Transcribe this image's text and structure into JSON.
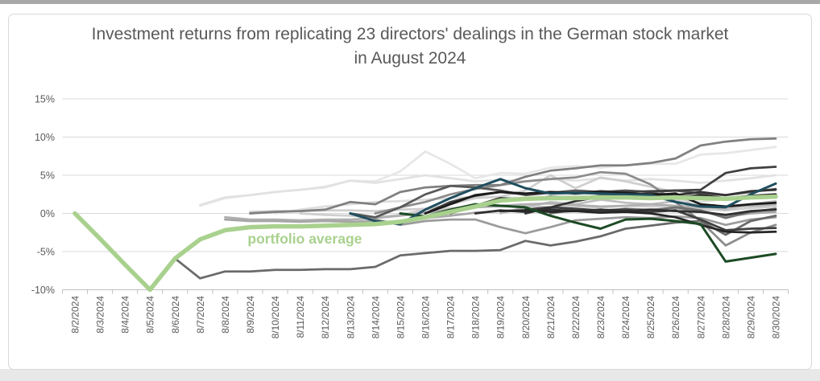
{
  "page": {
    "top_strip_color": "#a8a8a8",
    "bottom_strip_color": "#e8e8e8",
    "card_border_color": "#d9d9d9",
    "background_color": "#ffffff"
  },
  "chart_data": {
    "type": "line",
    "title": "Investment returns from replicating 23 directors' dealings in the German stock market in August 2024",
    "title_color": "#595959",
    "x_labels": [
      "8/2/2024",
      "8/3/2024",
      "8/4/2024",
      "8/5/2024",
      "8/6/2024",
      "8/7/2024",
      "8/8/2024",
      "8/9/2024",
      "8/10/2024",
      "8/11/2024",
      "8/12/2024",
      "8/13/2024",
      "8/14/2024",
      "8/15/2024",
      "8/16/2024",
      "8/17/2024",
      "8/18/2024",
      "8/19/2024",
      "8/20/2024",
      "8/21/2024",
      "8/22/2024",
      "8/23/2024",
      "8/24/2024",
      "8/25/2024",
      "8/26/2024",
      "8/27/2024",
      "8/28/2024",
      "8/29/2024",
      "8/30/2024"
    ],
    "ylim": [
      -10,
      15
    ],
    "yticks": [
      15,
      10,
      5,
      0,
      -5,
      -10
    ],
    "ytick_labels": [
      "15%",
      "10%",
      "5%",
      "0%",
      "-5%",
      "-10%"
    ],
    "grid": true,
    "legend_position": "none",
    "grid_color": "#d9d9d9",
    "axis_color": "#bfbfbf",
    "tick_label_color": "#595959",
    "annotation": {
      "text": "portfolio average",
      "color": "#a9d18e",
      "x_index": 6.9,
      "value": -2.6
    },
    "series": [
      {
        "id": "director-1",
        "color": "#e7e7e7",
        "width": 2.75,
        "values": [
          null,
          null,
          null,
          null,
          null,
          1.0,
          2.0,
          2.4,
          2.8,
          3.1,
          3.4,
          4.3,
          4.2,
          5.5,
          8.1,
          6.5,
          4.6,
          5.3,
          5.2,
          6.0,
          6.2,
          6.0,
          6.3,
          6.5,
          6.5,
          7.7,
          7.9,
          8.3,
          8.7
        ]
      },
      {
        "id": "director-2",
        "color": "#e2e2e2",
        "width": 2.75,
        "values": [
          null,
          null,
          null,
          null,
          null,
          1.1,
          2.1,
          2.4,
          2.8,
          3.1,
          3.5,
          4.3,
          4.0,
          4.5,
          5.0,
          4.6,
          4.2,
          4.4,
          4.2,
          4.5,
          4.3,
          4.6,
          4.3,
          4.5,
          4.3,
          4.0,
          4.3,
          4.6,
          5.0
        ]
      },
      {
        "id": "director-3",
        "color": "#dedede",
        "width": 2.75,
        "values": [
          null,
          null,
          null,
          null,
          null,
          null,
          null,
          null,
          0.0,
          0.5,
          0.9,
          1.2,
          1.5,
          1.6,
          1.8,
          2.0,
          2.2,
          2.1,
          2.0,
          2.2,
          2.3,
          2.1,
          2.2,
          2.4,
          1.8,
          1.5,
          1.9,
          2.1,
          2.1
        ]
      },
      {
        "id": "director-4",
        "color": "#d0cece",
        "width": 2.75,
        "values": [
          null,
          null,
          null,
          null,
          null,
          null,
          null,
          0.2,
          0.3,
          0.3,
          0.4,
          0.4,
          0.3,
          0.5,
          0.6,
          0.7,
          0.8,
          0.9,
          1.0,
          0.8,
          0.9,
          0.8,
          1.0,
          0.9,
          1.0,
          0.6,
          0.4,
          0.7,
          0.9
        ]
      },
      {
        "id": "director-5",
        "color": "#cfcfcf",
        "width": 2.75,
        "values": [
          null,
          null,
          null,
          null,
          null,
          null,
          null,
          null,
          null,
          0.0,
          -0.2,
          -0.3,
          -0.5,
          -0.2,
          0.5,
          1.2,
          2.0,
          2.2,
          3.0,
          5.0,
          3.3,
          4.7,
          4.2,
          3.5,
          2.8,
          0.2,
          0.8,
          1.0,
          1.0
        ]
      },
      {
        "id": "director-6",
        "color": "#bfbfbf",
        "width": 2.75,
        "values": [
          null,
          null,
          null,
          null,
          null,
          null,
          null,
          null,
          null,
          null,
          null,
          null,
          null,
          null,
          null,
          null,
          null,
          0.0,
          0.8,
          1.5,
          1.2,
          1.8,
          1.4,
          1.2,
          1.6,
          1.0,
          0.5,
          1.2,
          1.6
        ]
      },
      {
        "id": "director-7",
        "color": "#b0b0b0",
        "width": 2.75,
        "values": [
          null,
          null,
          null,
          null,
          null,
          null,
          -0.5,
          -0.8,
          -0.8,
          -0.9,
          -0.8,
          -0.8,
          -0.6,
          -0.3,
          0.1,
          0.5,
          0.8,
          1.0,
          1.2,
          1.3,
          1.1,
          0.9,
          1.0,
          1.2,
          1.0,
          0.8,
          0.9,
          1.0,
          1.2
        ]
      },
      {
        "id": "director-8",
        "color": "#a6a6a6",
        "width": 2.75,
        "values": [
          null,
          null,
          null,
          null,
          null,
          null,
          -0.8,
          -1.0,
          -1.0,
          -1.1,
          -1.0,
          -1.1,
          -1.0,
          -1.2,
          -0.6,
          -0.3,
          0.1,
          0.3,
          0.5,
          0.3,
          0.5,
          0.4,
          0.6,
          0.5,
          0.7,
          0.3,
          -0.4,
          0.0,
          0.2
        ]
      },
      {
        "id": "director-9",
        "color": "#9b9b9b",
        "width": 2.75,
        "values": [
          null,
          null,
          null,
          null,
          null,
          null,
          null,
          null,
          null,
          null,
          null,
          0.0,
          -0.8,
          -1.5,
          -1.0,
          -0.8,
          -0.8,
          -1.8,
          -2.6,
          -1.8,
          -0.9,
          -0.7,
          -0.5,
          -0.6,
          -0.4,
          -0.6,
          -1.5,
          -0.8,
          -0.5
        ]
      },
      {
        "id": "director-10",
        "color": "#8c8c8c",
        "width": 2.75,
        "values": [
          null,
          null,
          null,
          null,
          null,
          null,
          null,
          null,
          null,
          null,
          null,
          null,
          0.0,
          0.8,
          1.5,
          2.5,
          3.2,
          3.7,
          4.2,
          4.5,
          4.7,
          5.4,
          5.2,
          3.8,
          1.5,
          -1.0,
          -4.2,
          -2.5,
          -1.5
        ]
      },
      {
        "id": "director-11",
        "color": "#808080",
        "width": 2.75,
        "values": [
          null,
          null,
          null,
          null,
          null,
          null,
          null,
          0.0,
          0.2,
          0.3,
          0.5,
          1.5,
          1.2,
          2.8,
          3.4,
          3.6,
          3.7,
          3.7,
          4.8,
          5.6,
          5.9,
          6.3,
          6.3,
          6.6,
          7.2,
          8.9,
          9.4,
          9.7,
          9.8
        ]
      },
      {
        "id": "director-12",
        "color": "#6a6a6a",
        "width": 2.75,
        "values": [
          null,
          null,
          null,
          null,
          -5.9,
          -8.5,
          -7.6,
          -7.6,
          -7.4,
          -7.4,
          -7.3,
          -7.3,
          -7.0,
          -5.5,
          -5.2,
          -4.9,
          -4.9,
          -4.8,
          -3.6,
          -4.2,
          -3.7,
          -3.0,
          -2.0,
          -1.6,
          -1.2,
          -1.0,
          -2.8,
          -1.0,
          -0.3
        ]
      },
      {
        "id": "director-13",
        "color": "#707070",
        "width": 2.75,
        "values": [
          null,
          null,
          null,
          null,
          null,
          null,
          null,
          null,
          null,
          null,
          null,
          null,
          null,
          null,
          null,
          null,
          null,
          null,
          null,
          0.0,
          0.5,
          0.2,
          0.6,
          0.4,
          0.8,
          0.4,
          -0.6,
          0.2,
          0.6
        ]
      },
      {
        "id": "director-14",
        "color": "#595959",
        "width": 2.75,
        "values": [
          null,
          null,
          null,
          null,
          null,
          null,
          null,
          null,
          null,
          null,
          null,
          0.0,
          -0.5,
          0.8,
          2.5,
          3.6,
          3.4,
          3.0,
          2.4,
          2.7,
          3.0,
          2.8,
          3.0,
          2.8,
          3.0,
          2.6,
          2.4,
          2.8,
          3.2
        ]
      },
      {
        "id": "director-15",
        "color": "#404040",
        "width": 2.75,
        "values": [
          null,
          null,
          null,
          null,
          null,
          null,
          null,
          null,
          null,
          null,
          null,
          null,
          null,
          null,
          0.0,
          1.5,
          2.3,
          2.8,
          2.5,
          2.8,
          2.7,
          2.9,
          2.8,
          2.9,
          3.0,
          3.1,
          5.3,
          5.9,
          6.1
        ]
      },
      {
        "id": "director-16",
        "color": "#404040",
        "width": 2.75,
        "values": [
          null,
          null,
          null,
          null,
          null,
          null,
          null,
          null,
          null,
          null,
          null,
          null,
          null,
          null,
          null,
          null,
          null,
          null,
          0.5,
          0.8,
          0.6,
          0.4,
          0.5,
          0.2,
          0.4,
          -0.8,
          -2.2,
          -2.0,
          -1.9
        ]
      },
      {
        "id": "director-17",
        "color": "#333333",
        "width": 2.75,
        "values": [
          null,
          null,
          null,
          null,
          null,
          null,
          null,
          null,
          null,
          null,
          null,
          null,
          null,
          null,
          null,
          null,
          null,
          null,
          0.0,
          0.8,
          1.6,
          2.2,
          2.4,
          2.6,
          2.4,
          2.8,
          2.4,
          2.9,
          3.1
        ]
      },
      {
        "id": "director-18",
        "color": "#303030",
        "width": 2.75,
        "values": [
          null,
          null,
          null,
          null,
          null,
          null,
          null,
          null,
          null,
          null,
          null,
          null,
          null,
          null,
          null,
          null,
          0.0,
          0.4,
          0.2,
          0.5,
          0.3,
          0.5,
          0.3,
          0.5,
          0.3,
          0.2,
          -0.2,
          0.3,
          0.5
        ]
      },
      {
        "id": "director-19",
        "color": "#2e2e2e",
        "width": 2.75,
        "values": [
          null,
          null,
          null,
          null,
          null,
          null,
          null,
          null,
          null,
          null,
          null,
          null,
          null,
          null,
          null,
          0.0,
          1.0,
          2.0,
          1.8,
          2.2,
          2.0,
          2.3,
          2.1,
          2.3,
          2.1,
          2.4,
          2.0,
          2.3,
          2.5
        ]
      },
      {
        "id": "director-20",
        "color": "#262626",
        "width": 2.75,
        "values": [
          null,
          null,
          null,
          null,
          null,
          null,
          null,
          null,
          null,
          null,
          null,
          null,
          null,
          null,
          null,
          null,
          null,
          0.3,
          0.4,
          0.2,
          0.3,
          0.1,
          0.2,
          0.0,
          -0.5,
          -1.5,
          -2.4,
          -2.5,
          -2.4
        ]
      },
      {
        "id": "director-21",
        "color": "#1a1a1a",
        "width": 2.75,
        "values": [
          null,
          null,
          null,
          null,
          null,
          null,
          null,
          null,
          null,
          null,
          null,
          null,
          null,
          null,
          0.0,
          1.2,
          2.4,
          2.8,
          2.6,
          2.8,
          2.6,
          2.8,
          2.7,
          2.4,
          2.6,
          1.2,
          0.9,
          1.2,
          1.4
        ]
      },
      {
        "id": "director-22",
        "color": "#1c4a24",
        "width": 3,
        "values": [
          null,
          null,
          null,
          null,
          null,
          null,
          null,
          null,
          null,
          null,
          null,
          null,
          null,
          0.0,
          -0.4,
          0.5,
          1.2,
          1.0,
          0.8,
          -0.3,
          -1.2,
          -2.0,
          -0.8,
          -0.7,
          -1.0,
          -1.4,
          -6.3,
          -5.8,
          -5.3
        ]
      },
      {
        "id": "director-23",
        "color": "#1f4e5f",
        "width": 3,
        "values": [
          null,
          null,
          null,
          null,
          null,
          null,
          null,
          null,
          null,
          null,
          null,
          0.0,
          -1.0,
          -1.4,
          0.5,
          2.0,
          3.3,
          4.5,
          3.3,
          2.6,
          2.7,
          2.6,
          2.5,
          2.4,
          1.5,
          0.9,
          0.8,
          2.5,
          3.9
        ]
      },
      {
        "id": "portfolio-average",
        "color": "#a9d18e",
        "width": 5.5,
        "values": [
          0,
          -3.3,
          -6.7,
          -10,
          -5.9,
          -3.4,
          -2.2,
          -1.8,
          -1.7,
          -1.7,
          -1.6,
          -1.5,
          -1.4,
          -1.1,
          -0.5,
          0.2,
          0.9,
          1.7,
          1.9,
          2.0,
          2.0,
          2.1,
          2.1,
          2.0,
          2.1,
          2.0,
          1.9,
          2.1,
          2.2
        ]
      }
    ]
  }
}
